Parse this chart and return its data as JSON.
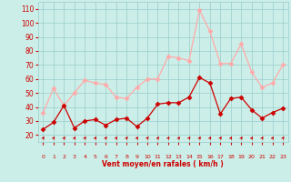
{
  "x": [
    0,
    1,
    2,
    3,
    4,
    5,
    6,
    7,
    8,
    9,
    10,
    11,
    12,
    13,
    14,
    15,
    16,
    17,
    18,
    19,
    20,
    21,
    22,
    23
  ],
  "wind_mean": [
    24,
    29,
    41,
    25,
    30,
    31,
    27,
    31,
    32,
    26,
    32,
    42,
    43,
    43,
    47,
    61,
    57,
    35,
    46,
    47,
    38,
    32,
    36,
    39
  ],
  "wind_gust": [
    36,
    53,
    41,
    50,
    59,
    57,
    56,
    47,
    46,
    54,
    60,
    60,
    76,
    75,
    73,
    109,
    94,
    71,
    71,
    85,
    65,
    54,
    57,
    70
  ],
  "line_color_mean": "#cc0000",
  "line_color_gust": "#ffaaaa",
  "bg_color": "#cceee8",
  "grid_color": "#99cccc",
  "xlabel": "Vent moyen/en rafales ( km/h )",
  "ylabel_ticks": [
    20,
    30,
    40,
    50,
    60,
    70,
    80,
    90,
    100,
    110
  ],
  "ylim": [
    15,
    115
  ],
  "xlim": [
    -0.5,
    23.5
  ],
  "xlabel_color": "#cc0000",
  "tick_color": "#cc0000"
}
